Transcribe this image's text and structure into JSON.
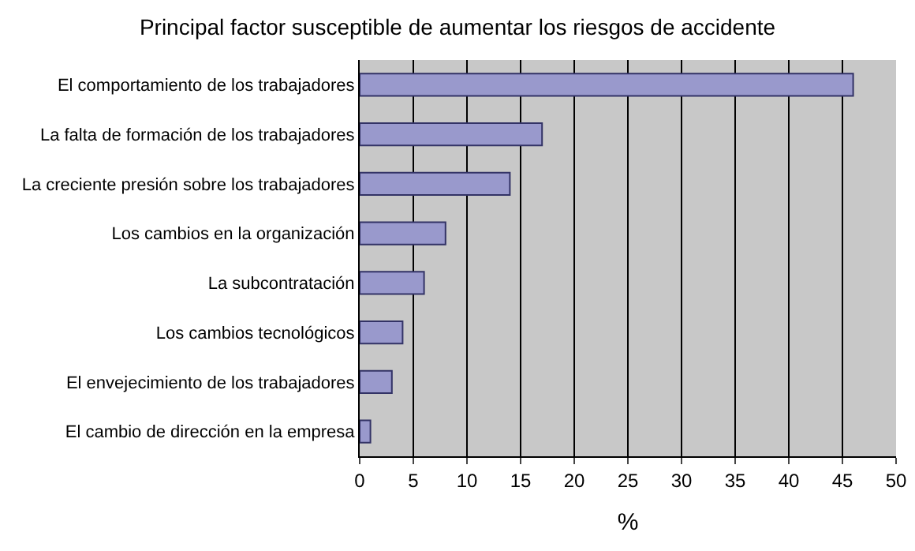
{
  "chart_data": {
    "type": "bar",
    "orientation": "horizontal",
    "title": "Principal factor susceptible de aumentar los riesgos de accidente",
    "xlabel": "%",
    "categories": [
      "El comportamiento de los trabajadores",
      "La falta de formación de los trabajadores",
      "La creciente presión sobre los trabajadores",
      "Los cambios en la organización",
      "La subcontratación",
      "Los cambios tecnológicos",
      "El envejecimiento de los trabajadores",
      "El cambio de dirección en la empresa"
    ],
    "values": [
      46,
      17,
      14,
      8,
      6,
      4,
      3,
      1
    ],
    "color": "#9999cc",
    "xlim": [
      0,
      50
    ],
    "xticks": [
      0,
      5,
      10,
      15,
      20,
      25,
      30,
      35,
      40,
      45,
      50
    ],
    "grid": "x",
    "legend": false
  }
}
